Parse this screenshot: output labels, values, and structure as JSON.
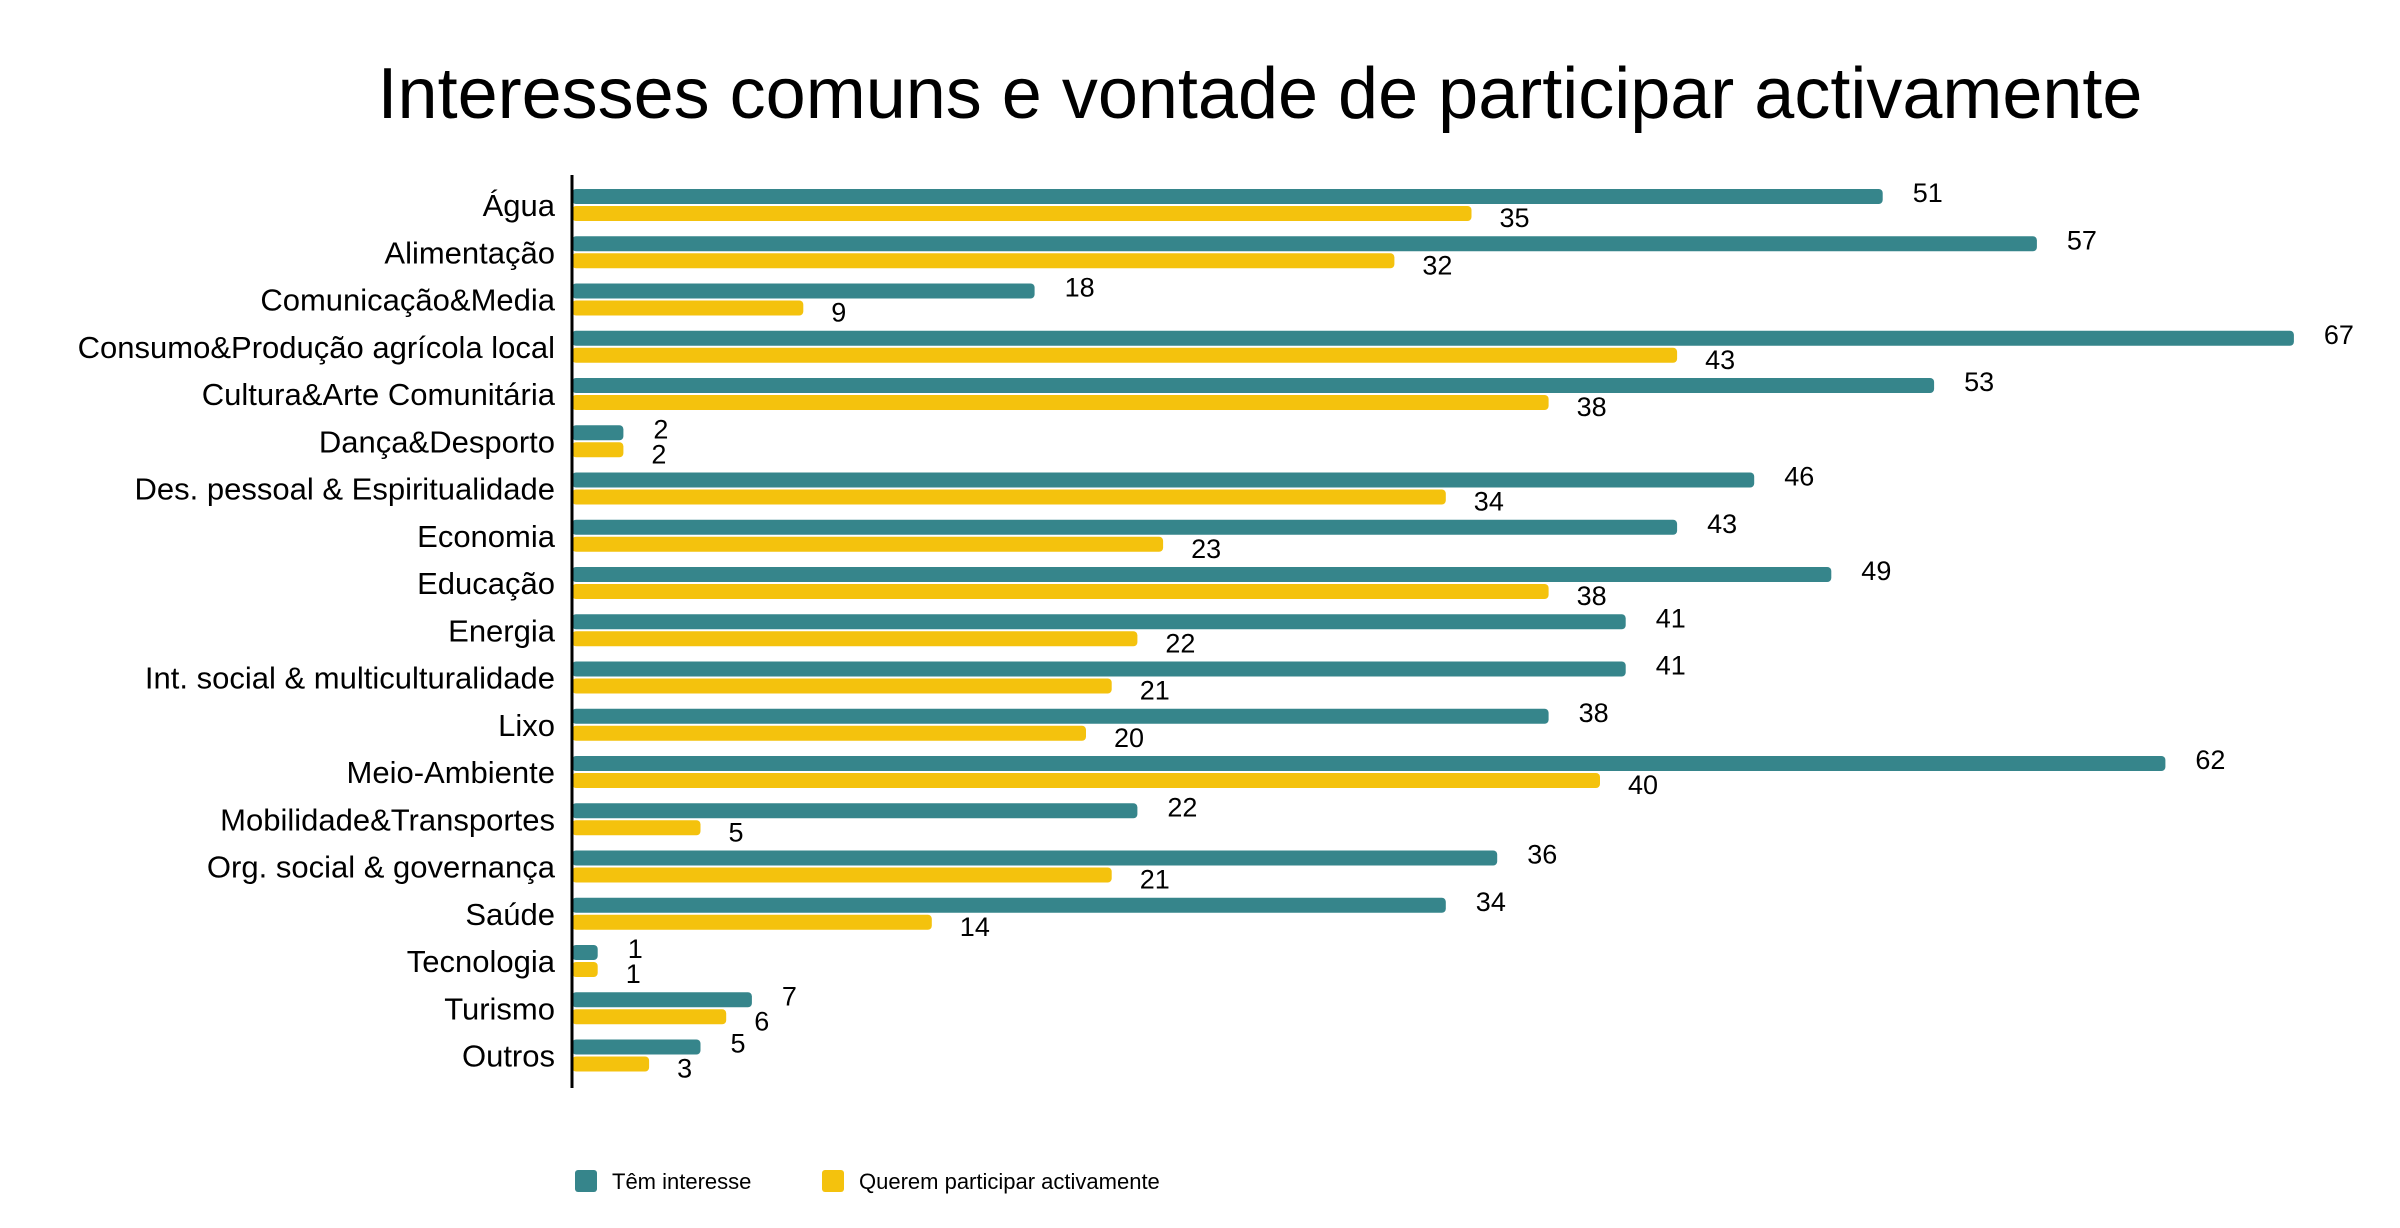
{
  "chart_data": {
    "type": "bar",
    "orientation": "horizontal",
    "title": "Interesses comuns e vontade de participar activamente",
    "categories": [
      "Água",
      "Alimentação",
      "Comunicação&Media",
      "Consumo&Produção agrícola local",
      "Cultura&Arte Comunitária",
      "Dança&Desporto",
      "Des. pessoal & Espiritualidade",
      "Economia",
      "Educação",
      "Energia",
      "Int. social & multiculturalidade",
      "Lixo",
      "Meio-Ambiente",
      "Mobilidade&Transportes",
      "Org. social & governança",
      "Saúde",
      "Tecnologia",
      "Turismo",
      "Outros"
    ],
    "series": [
      {
        "name": "Têm interesse",
        "color": "#36858b",
        "values": [
          51,
          57,
          18,
          67,
          53,
          2,
          46,
          43,
          49,
          41,
          41,
          38,
          62,
          22,
          36,
          34,
          1,
          7,
          5
        ]
      },
      {
        "name": "Querem participar activamente",
        "color": "#f4c20d",
        "values": [
          35,
          32,
          9,
          43,
          38,
          2,
          34,
          23,
          38,
          22,
          21,
          20,
          40,
          5,
          21,
          14,
          1,
          6,
          3
        ]
      }
    ],
    "xlim": [
      0,
      67
    ],
    "grid": false,
    "legend_position": "bottom-left",
    "data_labels": true
  }
}
